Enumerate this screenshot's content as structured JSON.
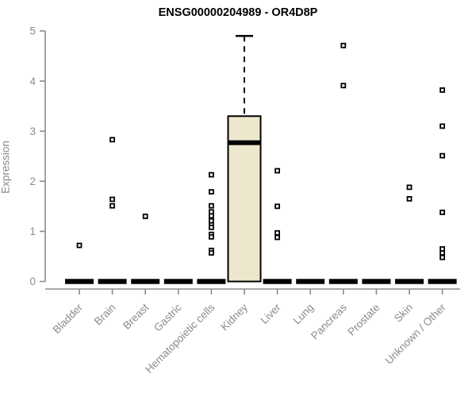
{
  "chart_data": {
    "type": "boxplot",
    "title": "ENSG00000204989 - OR4D8P",
    "xlabel": "",
    "ylabel": "Expression",
    "ylim": [
      0,
      5
    ],
    "yticks": [
      0,
      1,
      2,
      3,
      4,
      5
    ],
    "grid": false,
    "categories": [
      "Bladder",
      "Brain",
      "Breast",
      "Gastric",
      "Hematopoietic cells",
      "Kidney",
      "Liver",
      "Lung",
      "Pancreas",
      "Prostate",
      "Skin",
      "Unknown / Other"
    ],
    "boxes": [
      {
        "category": "Bladder",
        "q1": 0,
        "median": 0,
        "q3": 0,
        "whisker_low": 0,
        "whisker_high": 0,
        "outliers": [
          0.72
        ]
      },
      {
        "category": "Brain",
        "q1": 0,
        "median": 0,
        "q3": 0,
        "whisker_low": 0,
        "whisker_high": 0,
        "outliers": [
          2.83,
          1.64,
          1.51
        ]
      },
      {
        "category": "Breast",
        "q1": 0,
        "median": 0,
        "q3": 0,
        "whisker_low": 0,
        "whisker_high": 0,
        "outliers": [
          1.3
        ]
      },
      {
        "category": "Gastric",
        "q1": 0,
        "median": 0,
        "q3": 0,
        "whisker_low": 0,
        "whisker_high": 0,
        "outliers": []
      },
      {
        "category": "Hematopoietic cells",
        "q1": 0,
        "median": 0,
        "q3": 0,
        "whisker_low": 0,
        "whisker_high": 0,
        "outliers": [
          2.13,
          1.79,
          1.51,
          1.39,
          1.31,
          1.21,
          1.13,
          1.08,
          0.94,
          0.89,
          0.62,
          0.57
        ]
      },
      {
        "category": "Kidney",
        "q1": 0,
        "median": 2.77,
        "q3": 3.3,
        "whisker_low": 0,
        "whisker_high": 4.9,
        "outliers": []
      },
      {
        "category": "Liver",
        "q1": 0,
        "median": 0,
        "q3": 0,
        "whisker_low": 0,
        "whisker_high": 0,
        "outliers": [
          2.21,
          1.5,
          0.97,
          0.88
        ]
      },
      {
        "category": "Lung",
        "q1": 0,
        "median": 0,
        "q3": 0,
        "whisker_low": 0,
        "whisker_high": 0,
        "outliers": []
      },
      {
        "category": "Pancreas",
        "q1": 0,
        "median": 0,
        "q3": 0,
        "whisker_low": 0,
        "whisker_high": 0,
        "outliers": [
          4.71,
          3.91
        ]
      },
      {
        "category": "Prostate",
        "q1": 0,
        "median": 0,
        "q3": 0,
        "whisker_low": 0,
        "whisker_high": 0,
        "outliers": []
      },
      {
        "category": "Skin",
        "q1": 0,
        "median": 0,
        "q3": 0,
        "whisker_low": 0,
        "whisker_high": 0,
        "outliers": [
          1.88,
          1.65
        ]
      },
      {
        "category": "Unknown / Other",
        "q1": 0,
        "median": 0,
        "q3": 0,
        "whisker_low": 0,
        "whisker_high": 0,
        "outliers": [
          3.82,
          3.1,
          2.51,
          1.38,
          0.65,
          0.57,
          0.48
        ]
      }
    ],
    "colors": {
      "box_fill": "#ece7cd",
      "box_border": "#000000",
      "median": "#000000",
      "whisker": "#000000",
      "outlier": "#000000",
      "axis": "#8b8b8b",
      "tick_labels": "#8b8b8b",
      "title": "#000000",
      "background": "#ffffff"
    }
  }
}
